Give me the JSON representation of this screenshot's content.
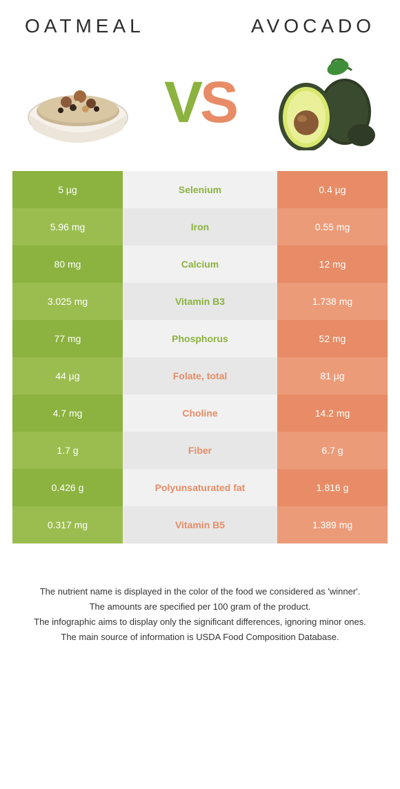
{
  "colors": {
    "oatmeal_dark": "#8cb23f",
    "oatmeal_light": "#9bbd4f",
    "avocado_dark": "#e78c66",
    "avocado_light": "#ec9b79",
    "mid_light": "#f1f1f1",
    "mid_dark": "#e7e7e7",
    "oatmeal_text": "#8cb23f",
    "avocado_text": "#e78c66",
    "title_color": "#2c2c2c",
    "vs_v": "#8cb23f",
    "vs_s": "#e78c66"
  },
  "titles": {
    "left": "OATMEAL",
    "right": "AVOCADO"
  },
  "vs": {
    "v": "V",
    "s": "S"
  },
  "rows": [
    {
      "name": "Selenium",
      "left": "5 µg",
      "right": "0.4 µg",
      "winner": "left"
    },
    {
      "name": "Iron",
      "left": "5.96 mg",
      "right": "0.55 mg",
      "winner": "left"
    },
    {
      "name": "Calcium",
      "left": "80 mg",
      "right": "12 mg",
      "winner": "left"
    },
    {
      "name": "Vitamin B3",
      "left": "3.025 mg",
      "right": "1.738 mg",
      "winner": "left"
    },
    {
      "name": "Phosphorus",
      "left": "77 mg",
      "right": "52 mg",
      "winner": "left"
    },
    {
      "name": "Folate, total",
      "left": "44 µg",
      "right": "81 µg",
      "winner": "right"
    },
    {
      "name": "Choline",
      "left": "4.7 mg",
      "right": "14.2 mg",
      "winner": "right"
    },
    {
      "name": "Fiber",
      "left": "1.7 g",
      "right": "6.7 g",
      "winner": "right"
    },
    {
      "name": "Polyunsaturated fat",
      "left": "0.426 g",
      "right": "1.816 g",
      "winner": "right"
    },
    {
      "name": "Vitamin B5",
      "left": "0.317 mg",
      "right": "1.389 mg",
      "winner": "right"
    }
  ],
  "footnotes": [
    "The nutrient name is displayed in the color of the food we considered as 'winner'.",
    "The amounts are specified per 100 gram of the product.",
    "The infographic aims to display only the significant differences, ignoring minor ones.",
    "The main source of information is USDA Food Composition Database."
  ]
}
